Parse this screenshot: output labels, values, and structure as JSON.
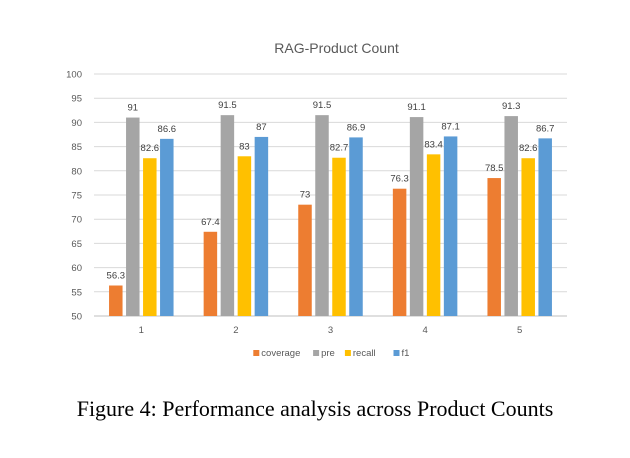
{
  "chart_data": {
    "type": "bar",
    "title": "RAG-Product Count",
    "xlabel": "",
    "ylabel": "",
    "categories": [
      "1",
      "2",
      "3",
      "4",
      "5"
    ],
    "ylim": [
      50,
      100
    ],
    "yticks": [
      50,
      55,
      60,
      65,
      70,
      75,
      80,
      85,
      90,
      95,
      100
    ],
    "grid": true,
    "legend": "bottom",
    "series": [
      {
        "name": "coverage",
        "color": "#ED7D31",
        "values": [
          56.3,
          67.4,
          73,
          76.3,
          78.5
        ]
      },
      {
        "name": "pre",
        "color": "#A5A5A5",
        "values": [
          91,
          91.5,
          91.5,
          91.1,
          91.3
        ]
      },
      {
        "name": "recall",
        "color": "#FFC000",
        "values": [
          82.6,
          83,
          82.7,
          83.4,
          82.6
        ]
      },
      {
        "name": "f1",
        "color": "#5B9BD5",
        "values": [
          86.6,
          87,
          86.9,
          87.1,
          86.7
        ]
      }
    ]
  },
  "caption": "Figure 4: Performance analysis across Product Counts"
}
